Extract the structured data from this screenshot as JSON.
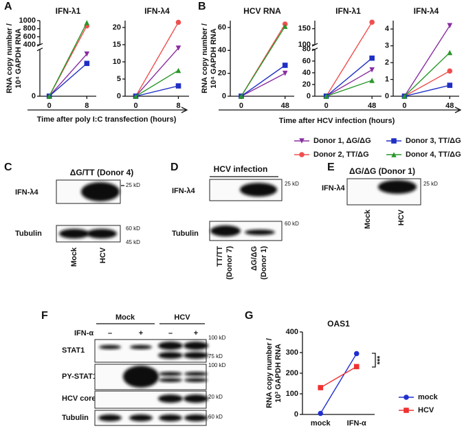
{
  "panel_labels": [
    "A",
    "B",
    "C",
    "D",
    "E",
    "F",
    "G"
  ],
  "panel_a_xlabel": "Time after poly I:C transfection (hours)",
  "panel_b_xlabel": "Time after HCV infection (hours)",
  "chart_data": [
    {
      "type": "line",
      "title": "IFN-λ1",
      "y_label": [
        "RNA copy number /",
        "10⁴ GAPDH RNA"
      ],
      "x": [
        0,
        8
      ],
      "xticks": [
        0,
        8
      ],
      "xlim": [
        -2,
        10
      ],
      "ylim": [
        0,
        1000
      ],
      "ybreak": [
        200,
        400
      ],
      "yticks": [
        0,
        400,
        600,
        800,
        1000
      ],
      "series": [
        {
          "name": "Donor 1, ΔG/ΔG",
          "color": "#8a2ea0",
          "marker": "triangle-down",
          "values": [
            0,
            180
          ]
        },
        {
          "name": "Donor 2, TT/ΔG",
          "color": "#f04f4f",
          "marker": "circle",
          "values": [
            0,
            870
          ]
        },
        {
          "name": "Donor 3, TT/ΔG",
          "color": "#1f2fc4",
          "marker": "square",
          "values": [
            0,
            140
          ]
        },
        {
          "name": "Donor 4, TT/ΔG",
          "color": "#2a962a",
          "marker": "triangle-up",
          "values": [
            0,
            950
          ]
        }
      ]
    },
    {
      "type": "line",
      "title": "IFN-λ4",
      "x": [
        0,
        8
      ],
      "xticks": [
        0,
        8
      ],
      "xlim": [
        -2,
        10
      ],
      "ylim": [
        0,
        22
      ],
      "yticks": [
        0,
        5,
        10,
        15,
        20
      ],
      "series": [
        {
          "name": "Donor 1, ΔG/ΔG",
          "color": "#8a2ea0",
          "marker": "triangle-down",
          "values": [
            0,
            14
          ]
        },
        {
          "name": "Donor 2, TT/ΔG",
          "color": "#f04f4f",
          "marker": "circle",
          "values": [
            0,
            21.5
          ]
        },
        {
          "name": "Donor 3, TT/ΔG",
          "color": "#1f2fc4",
          "marker": "square",
          "values": [
            0,
            3
          ]
        },
        {
          "name": "Donor 4, TT/ΔG",
          "color": "#2a962a",
          "marker": "triangle-up",
          "values": [
            0,
            7.5
          ]
        }
      ]
    },
    {
      "type": "line",
      "title": "HCV RNA",
      "y_label": [
        "RNA copy number /",
        "10⁴ GAPDH RNA"
      ],
      "x": [
        0,
        48
      ],
      "xticks": [
        0,
        48
      ],
      "xlim": [
        -12,
        58
      ],
      "ylim": [
        0,
        66
      ],
      "yticks": [
        0,
        20,
        40,
        60
      ],
      "series": [
        {
          "name": "Donor 1, ΔG/ΔG",
          "color": "#8a2ea0",
          "marker": "triangle-down",
          "values": [
            0,
            20
          ]
        },
        {
          "name": "Donor 2, TT/ΔG",
          "color": "#f04f4f",
          "marker": "circle",
          "values": [
            0,
            63
          ]
        },
        {
          "name": "Donor 3, TT/ΔG",
          "color": "#1f2fc4",
          "marker": "square",
          "values": [
            0,
            27
          ]
        },
        {
          "name": "Donor 4, TT/ΔG",
          "color": "#2a962a",
          "marker": "triangle-up",
          "values": [
            0,
            61
          ]
        }
      ]
    },
    {
      "type": "line",
      "title": "IFN-λ1",
      "x": [
        0,
        48
      ],
      "xticks": [
        0,
        48
      ],
      "xlim": [
        -12,
        58
      ],
      "ylim": [
        0,
        175
      ],
      "ybreak": [
        80,
        100
      ],
      "yticks": [
        0,
        20,
        40,
        60,
        80,
        100,
        150
      ],
      "series": [
        {
          "name": "Donor 1, ΔG/ΔG",
          "color": "#8a2ea0",
          "marker": "triangle-down",
          "values": [
            0,
            45
          ]
        },
        {
          "name": "Donor 2, TT/ΔG",
          "color": "#f04f4f",
          "marker": "circle",
          "values": [
            0,
            170
          ]
        },
        {
          "name": "Donor 3, TT/ΔG",
          "color": "#1f2fc4",
          "marker": "square",
          "values": [
            0,
            65
          ]
        },
        {
          "name": "Donor 4, TT/ΔG",
          "color": "#2a962a",
          "marker": "triangle-up",
          "values": [
            0,
            27
          ]
        }
      ]
    },
    {
      "type": "line",
      "title": "IFN-λ4",
      "x": [
        0,
        48
      ],
      "xticks": [
        0,
        48
      ],
      "xlim": [
        -12,
        58
      ],
      "ylim": [
        0,
        4.5
      ],
      "yticks": [
        0,
        1,
        2,
        3,
        4
      ],
      "series": [
        {
          "name": "Donor 1, ΔG/ΔG",
          "color": "#8a2ea0",
          "marker": "triangle-down",
          "values": [
            0,
            4.2
          ]
        },
        {
          "name": "Donor 2, TT/ΔG",
          "color": "#f04f4f",
          "marker": "circle",
          "values": [
            0,
            1.5
          ]
        },
        {
          "name": "Donor 3, TT/ΔG",
          "color": "#1f2fc4",
          "marker": "square",
          "values": [
            0,
            0.65
          ]
        },
        {
          "name": "Donor 4, TT/ΔG",
          "color": "#2a962a",
          "marker": "triangle-up",
          "values": [
            0,
            2.6
          ]
        }
      ]
    },
    {
      "type": "line",
      "title": "OAS1",
      "y_label": [
        "RNA copy number /",
        "10³ GAPDH RNA"
      ],
      "categories": [
        "mock",
        "IFN-α"
      ],
      "ylim": [
        0,
        400
      ],
      "yticks": [
        0,
        100,
        200,
        300,
        400
      ],
      "annotation": "***",
      "legend": "right",
      "series": [
        {
          "name": "mock",
          "color": "#1f2fd0",
          "marker": "circle",
          "values": [
            5,
            295
          ]
        },
        {
          "name": "HCV",
          "color": "#f03030",
          "marker": "square",
          "values": [
            130,
            232
          ]
        }
      ]
    }
  ],
  "blot_c": {
    "title": "ΔG/TT (Donor 4)",
    "rows": [
      "IFN-λ4",
      "Tubulin"
    ],
    "markers": [
      "25 kD",
      "60 kD",
      "45 kD"
    ],
    "lanes": [
      "Mock",
      "HCV"
    ]
  },
  "blot_d": {
    "title": "HCV infection",
    "rows": [
      "IFN-λ4",
      "Tubulin"
    ],
    "markers": [
      "25 kD",
      "60 kD"
    ],
    "lanes": [
      [
        "TT/TT",
        "(Donor 7)"
      ],
      [
        "ΔG/ΔG",
        "(Donor 1)"
      ]
    ]
  },
  "blot_e": {
    "title": "ΔG/ΔG (Donor 1)",
    "rows": [
      "IFN-λ4"
    ],
    "markers": [
      "25 kD"
    ],
    "lanes": [
      "Mock",
      "HCV"
    ]
  },
  "blot_f": {
    "groups": [
      "Mock",
      "HCV"
    ],
    "treatment": "IFN-α",
    "treatment_signs": [
      "–",
      "+",
      "–",
      "+"
    ],
    "rows": [
      "STAT1",
      "PY-STAT1",
      "HCV core",
      "Tubulin"
    ],
    "markers": [
      "100 kD",
      "75 kD",
      "100 kD",
      "20 kD",
      "60 kD"
    ]
  }
}
